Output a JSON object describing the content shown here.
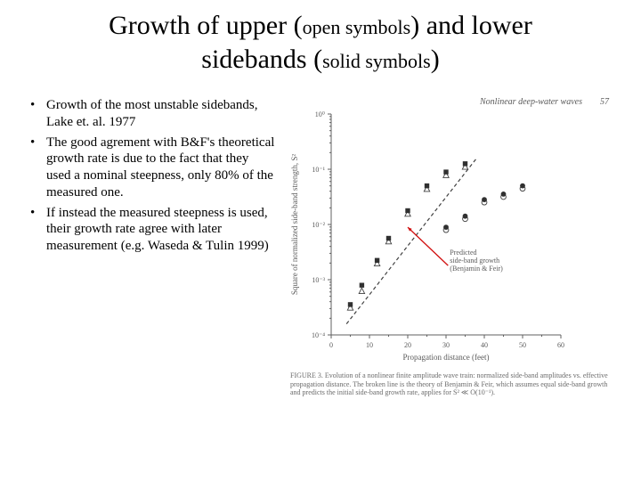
{
  "title": {
    "seg1_main": "Growth of upper (",
    "seg1_paren": "open symbols",
    "seg1_tail": ") and lower",
    "seg2_main": "sidebands (",
    "seg2_paren": "solid symbols",
    "seg2_tail": ")",
    "main_fontsize": 30,
    "paren_fontsize": 22
  },
  "bullets": {
    "items": [
      "Growth of the most unstable sidebands,  Lake et. al. 1977",
      "The good agrement with B&F's theoretical growth rate is due to the fact that they used a nominal steepness, only 80% of the measured one.",
      " If instead the measured steepness is used, their growth rate agree with later measurement (e.g. Waseda & Tulin 1999)"
    ],
    "fontsize": 15
  },
  "chart": {
    "type": "scatter-log",
    "header_right": "Nonlinear deep-water waves",
    "header_page": "57",
    "xlabel": "Propagation distance (feet)",
    "ylabel": "Square of normalized side-band strength, S²",
    "xlim": [
      0,
      60
    ],
    "xticks": [
      0,
      10,
      20,
      30,
      40,
      50,
      60
    ],
    "ylim_log10": [
      -4,
      0
    ],
    "ytick_labels": [
      "10⁻⁴",
      "10⁻³",
      "10⁻²",
      "10⁻¹",
      "10⁰"
    ],
    "minor_ticks": true,
    "caption": "FIGURE 3. Evolution of a nonlinear finite amplitude wave train: normalized side-band amplitudes vs. effective propagation distance. The broken line is the theory of Benjamin & Feir, which assumes equal side-band growth and predicts the initial side-band growth rate, applies for S² ≪ O(10⁻¹).",
    "annotation": {
      "lines": [
        "Predicted",
        "side-band growth",
        "(Benjamin & Feir)"
      ],
      "arrow_color": "#d11010",
      "text_color": "#5a5a5a",
      "fontsize": 8
    },
    "series": [
      {
        "name": "upper-sideband-1",
        "marker": "triangle-open",
        "color": "#404040",
        "points": [
          [
            5,
            -3.5
          ],
          [
            8,
            -3.2
          ],
          [
            12,
            -2.7
          ],
          [
            15,
            -2.3
          ],
          [
            20,
            -1.8
          ],
          [
            25,
            -1.35
          ],
          [
            30,
            -1.1
          ],
          [
            35,
            -0.95
          ]
        ]
      },
      {
        "name": "lower-sideband-1",
        "marker": "square-solid",
        "color": "#303030",
        "points": [
          [
            5,
            -3.45
          ],
          [
            8,
            -3.1
          ],
          [
            12,
            -2.65
          ],
          [
            15,
            -2.25
          ],
          [
            20,
            -1.75
          ],
          [
            25,
            -1.3
          ],
          [
            30,
            -1.05
          ],
          [
            35,
            -0.9
          ]
        ]
      },
      {
        "name": "upper-sideband-2",
        "marker": "circle-open",
        "color": "#404040",
        "points": [
          [
            30,
            -2.1
          ],
          [
            35,
            -1.9
          ],
          [
            40,
            -1.6
          ],
          [
            45,
            -1.5
          ],
          [
            50,
            -1.35
          ]
        ]
      },
      {
        "name": "lower-sideband-2",
        "marker": "circle-solid",
        "color": "#303030",
        "points": [
          [
            30,
            -2.05
          ],
          [
            35,
            -1.85
          ],
          [
            40,
            -1.55
          ],
          [
            45,
            -1.45
          ],
          [
            50,
            -1.3
          ]
        ]
      }
    ],
    "theory_line": {
      "x": [
        4,
        38
      ],
      "y_log10": [
        -3.8,
        -0.8
      ],
      "dash": "4 3",
      "color": "#404040",
      "width": 1.2
    },
    "axis_color": "#606060",
    "tick_color": "#606060",
    "label_color": "#5a5a5a",
    "background_color": "#ffffff",
    "label_fontsize": 9,
    "tick_fontsize": 8
  }
}
